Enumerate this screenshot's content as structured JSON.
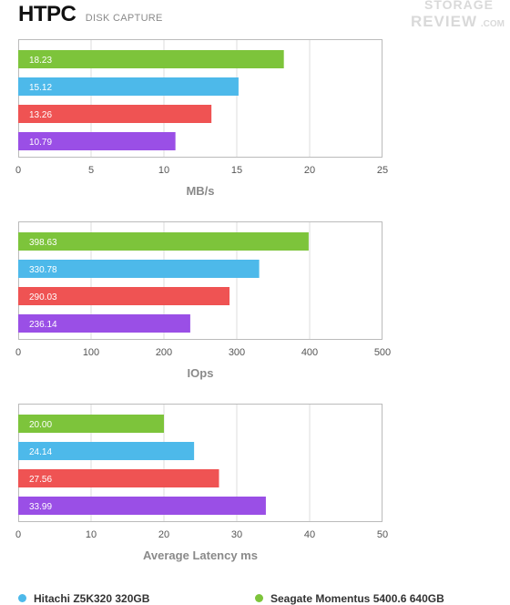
{
  "header": {
    "title": "HTPC",
    "subtitle": "DISK CAPTURE",
    "watermark_line1": "STORAGE",
    "watermark_line2": "REVIEW",
    "watermark_suffix": ".COM"
  },
  "colors": {
    "green": "#7dc43b",
    "blue": "#4db9ea",
    "red": "#ef5353",
    "purple": "#9a4fe6",
    "grid": "#dddddd",
    "frame": "#bbbbbb",
    "axis_text": "#555555",
    "axis_label": "#8a8a8a"
  },
  "chart_data": [
    {
      "type": "bar",
      "orientation": "horizontal",
      "xlabel": "MB/s",
      "xlim": [
        0,
        25
      ],
      "xticks": [
        0,
        5,
        10,
        15,
        20,
        25
      ],
      "grid": true,
      "bars": [
        {
          "value": 18.23,
          "label": "18.23",
          "color": "green"
        },
        {
          "value": 15.12,
          "label": "15.12",
          "color": "blue"
        },
        {
          "value": 13.26,
          "label": "13.26",
          "color": "red"
        },
        {
          "value": 10.79,
          "label": "10.79",
          "color": "purple"
        }
      ]
    },
    {
      "type": "bar",
      "orientation": "horizontal",
      "xlabel": "IOps",
      "xlim": [
        0,
        500
      ],
      "xticks": [
        0,
        100,
        200,
        300,
        400,
        500
      ],
      "grid": true,
      "bars": [
        {
          "value": 398.63,
          "label": "398.63",
          "color": "green"
        },
        {
          "value": 330.78,
          "label": "330.78",
          "color": "blue"
        },
        {
          "value": 290.03,
          "label": "290.03",
          "color": "red"
        },
        {
          "value": 236.14,
          "label": "236.14",
          "color": "purple"
        }
      ]
    },
    {
      "type": "bar",
      "orientation": "horizontal",
      "xlabel": "Average Latency ms",
      "xlim": [
        0,
        50
      ],
      "xticks": [
        0,
        10,
        20,
        30,
        40,
        50
      ],
      "grid": true,
      "bars": [
        {
          "value": 20.0,
          "label": "20.00",
          "color": "green"
        },
        {
          "value": 24.14,
          "label": "24.14",
          "color": "blue"
        },
        {
          "value": 27.56,
          "label": "27.56",
          "color": "red"
        },
        {
          "value": 33.99,
          "label": "33.99",
          "color": "purple"
        }
      ]
    }
  ],
  "legend": {
    "placement": "bottom",
    "items": [
      {
        "label": "Hitachi Z5K320 320GB",
        "color": "blue"
      },
      {
        "label": "Seagate Momentus 5400.6 640GB",
        "color": "green"
      }
    ]
  }
}
